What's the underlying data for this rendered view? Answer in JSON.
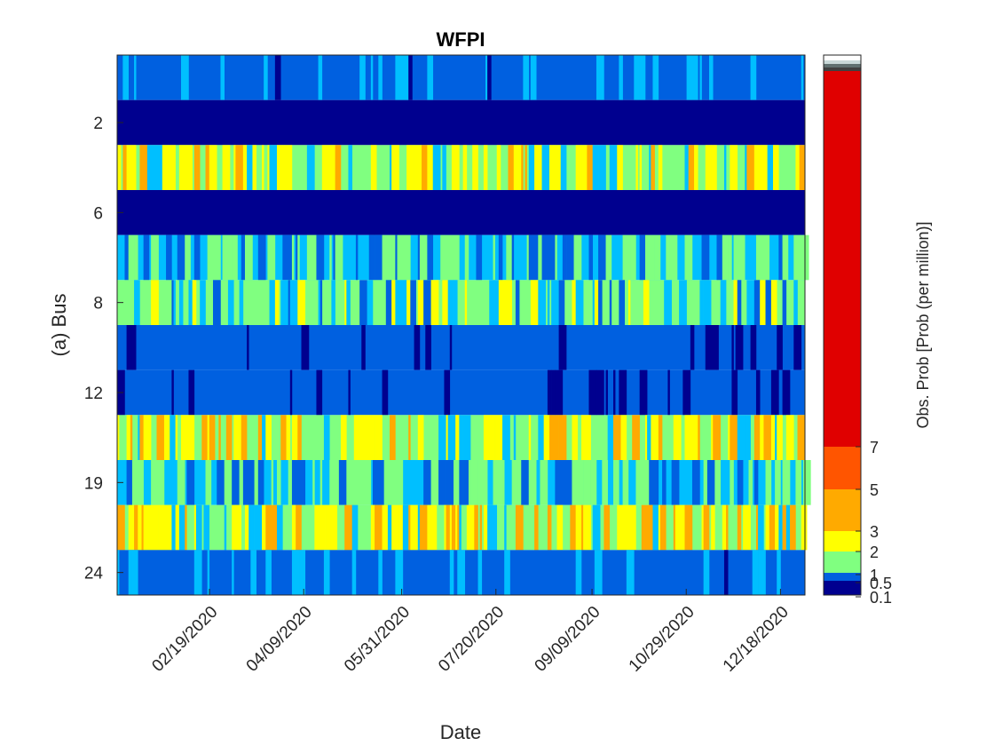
{
  "chart_data": {
    "type": "heatmap",
    "title": "WFPI",
    "xlabel": "Date",
    "ylabel": "(a) Bus",
    "x_ticks": [
      "02/19/2020",
      "04/09/2020",
      "05/31/2020",
      "07/20/2020",
      "09/09/2020",
      "10/29/2020",
      "12/18/2020"
    ],
    "x_range": [
      "01/01/2020",
      "12/31/2020"
    ],
    "y_ticks": [
      "2",
      "6",
      "8",
      "12",
      "19",
      "24"
    ],
    "rows": [
      {
        "row_index": 1,
        "y_label": "",
        "dominant_value": 0.3
      },
      {
        "row_index": 2,
        "y_label": "2",
        "dominant_value": 0.05
      },
      {
        "row_index": 3,
        "y_label": "",
        "dominant_value": 1.8
      },
      {
        "row_index": 4,
        "y_label": "6",
        "dominant_value": 0.05
      },
      {
        "row_index": 5,
        "y_label": "",
        "dominant_value": 0.8
      },
      {
        "row_index": 6,
        "y_label": "8",
        "dominant_value": 1.2
      },
      {
        "row_index": 7,
        "y_label": "",
        "dominant_value": 0.2
      },
      {
        "row_index": 8,
        "y_label": "12",
        "dominant_value": 0.2
      },
      {
        "row_index": 9,
        "y_label": "",
        "dominant_value": 1.8
      },
      {
        "row_index": 10,
        "y_label": "19",
        "dominant_value": 0.8
      },
      {
        "row_index": 11,
        "y_label": "",
        "dominant_value": 1.9
      },
      {
        "row_index": 12,
        "y_label": "24",
        "dominant_value": 0.3
      }
    ],
    "colorbar": {
      "label": "Obs. Prob [Prob (per million)]",
      "tick_labels": [
        "0.1",
        "0.5",
        "1",
        "2",
        "3",
        "5",
        "7"
      ],
      "bins": [
        {
          "upper": 0.1,
          "color": "#00008f"
        },
        {
          "upper": 0.5,
          "color": "#0060e0"
        },
        {
          "upper": 1,
          "color": "#00bfff"
        },
        {
          "upper": 2,
          "color": "#80ff80"
        },
        {
          "upper": 3,
          "color": "#ffff00"
        },
        {
          "upper": 5,
          "color": "#ffaa00"
        },
        {
          "upper": 7,
          "color": "#ff5500"
        },
        {
          "upper": 100,
          "color": "#e00000"
        }
      ]
    },
    "grid": false,
    "legend": "colorbar-right"
  }
}
